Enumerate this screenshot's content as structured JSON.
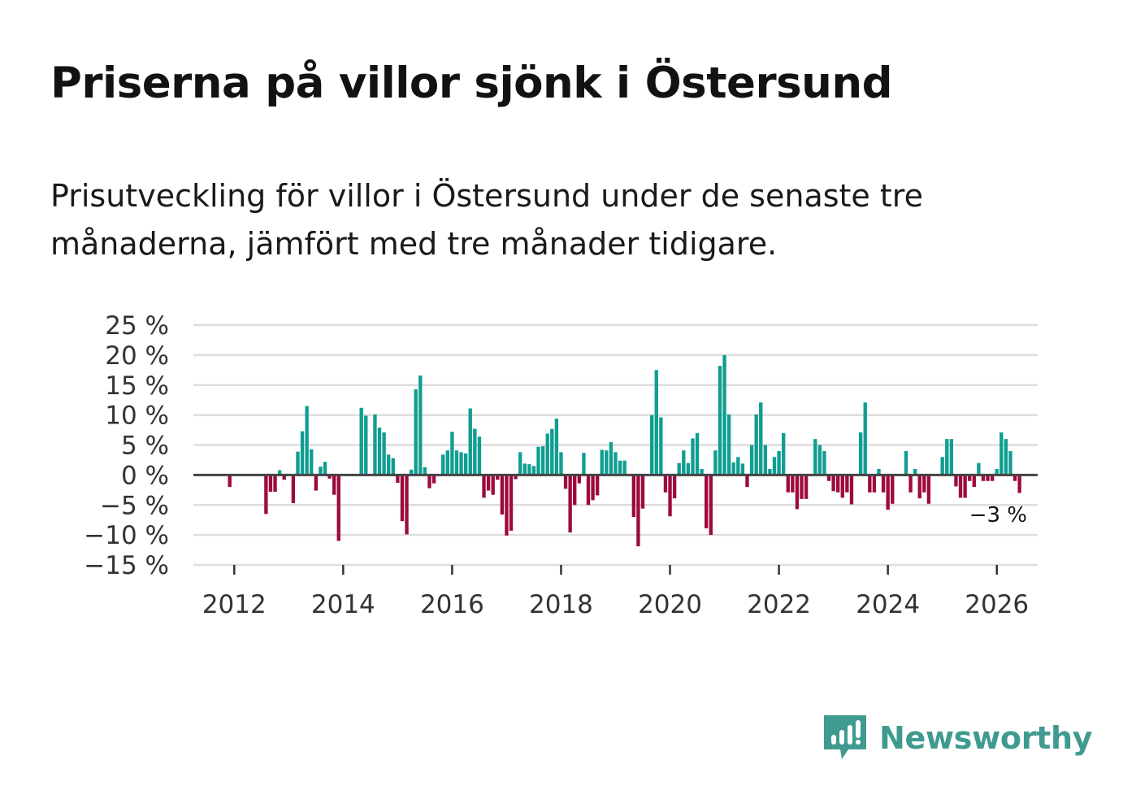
{
  "title": "Priserna på villor sjönk i Östersund",
  "subtitle": "Prisutveckling för villor i Östersund under de senaste tre månaderna, jämfört med tre månader tidigare.",
  "brand": {
    "name": "Newsworthy",
    "color": "#3f9a8f",
    "icon": "chart-bubble-icon"
  },
  "colors": {
    "positive": "#0f9e91",
    "negative": "#9e0a3e",
    "grid": "#dddddd",
    "zero_line": "#444444"
  },
  "chart_data": {
    "type": "bar",
    "title": "Priserna på villor sjönk i Östersund",
    "xlabel": "",
    "ylabel": "",
    "ylim": [
      -15,
      25
    ],
    "xlim": [
      2011.25,
      2026.75
    ],
    "y_ticks": [
      25,
      20,
      15,
      10,
      5,
      0,
      -5,
      -10,
      -15
    ],
    "y_tick_labels": [
      "25 %",
      "20 %",
      "15 %",
      "10 %",
      "5 %",
      "0 %",
      "−5 %",
      "−10 %",
      "−15 %"
    ],
    "x_ticks": [
      2012,
      2014,
      2016,
      2018,
      2020,
      2022,
      2024,
      2026
    ],
    "x_tick_labels": [
      "2012",
      "2014",
      "2016",
      "2018",
      "2020",
      "2022",
      "2024",
      "2026"
    ],
    "start": 2011.5,
    "step_months": 1,
    "values": [
      0,
      0,
      0,
      0,
      0,
      -2,
      0,
      0,
      0,
      0,
      0,
      0,
      0,
      -6.5,
      -2.8,
      -2.8,
      0.8,
      -0.8,
      0,
      -4.7,
      3.9,
      7.3,
      11.5,
      4.3,
      -2.6,
      1.4,
      2.2,
      -0.6,
      -3.3,
      -11,
      0,
      0,
      0,
      0,
      11.2,
      9.9,
      0,
      10.1,
      7.9,
      7.1,
      3.4,
      2.8,
      -1.3,
      -7.7,
      -9.9,
      0.9,
      14.3,
      16.6,
      1.3,
      -2.2,
      -1.4,
      0,
      3.4,
      4.1,
      7.2,
      4.1,
      3.8,
      3.6,
      11.1,
      7.7,
      6.4,
      -3.8,
      -2.6,
      -3.3,
      -0.8,
      -6.6,
      -10.1,
      -9.3,
      -0.7,
      3.8,
      1.9,
      1.8,
      1.5,
      4.7,
      4.8,
      6.9,
      7.7,
      9.4,
      3.8,
      -2.3,
      -9.6,
      -5,
      -1.4,
      3.7,
      -5,
      -4.2,
      -3.4,
      4.2,
      4.1,
      5.5,
      3.8,
      2.4,
      2.4,
      0,
      -7,
      -11.9,
      -5.6,
      0,
      10,
      17.5,
      9.6,
      -2.9,
      -6.9,
      -3.9,
      2,
      4.1,
      2,
      6.1,
      7,
      1,
      -8.9,
      -10,
      4.1,
      18.2,
      20,
      10.1,
      2.1,
      3,
      1.9,
      -2,
      5,
      10.1,
      12.1,
      5,
      1,
      3,
      4,
      7,
      -2.9,
      -2.9,
      -5.7,
      -4,
      -4,
      0,
      6,
      5,
      4,
      -1,
      -2.7,
      -2.9,
      -3.8,
      -2.9,
      -4.9,
      0,
      7.1,
      12.1,
      -2.9,
      -2.9,
      1,
      -2.9,
      -5.8,
      -4.8,
      0,
      0,
      4,
      -2.9,
      1,
      -3.9,
      -2.9,
      -4.8,
      0,
      0,
      3,
      6,
      6,
      -1.9,
      -3.8,
      -3.8,
      -1,
      -2,
      2,
      -1,
      -1,
      -1,
      1,
      7.1,
      6,
      4,
      -1,
      -3
    ],
    "annotation": {
      "text": "−3 %",
      "value": -3,
      "date": "2026-01"
    }
  }
}
